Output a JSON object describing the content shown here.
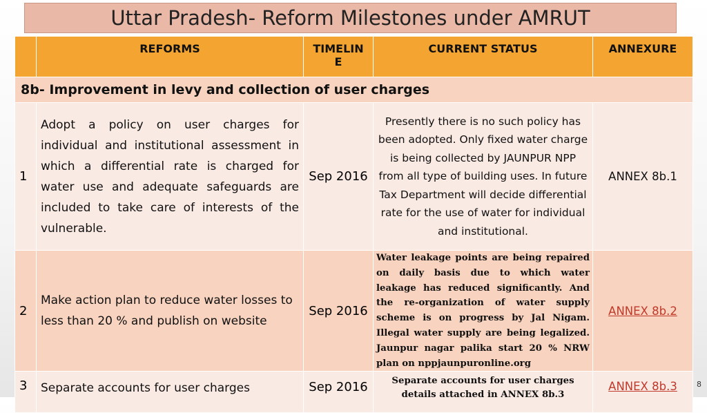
{
  "title": "Uttar Pradesh- Reform Milestones under AMRUT",
  "headers": {
    "reforms": "REFORMS",
    "timeline_line1": "TIMELIN",
    "timeline_line2": "E",
    "status": "CURRENT STATUS",
    "annexure": "ANNEXURE"
  },
  "section_title": "8b- Improvement in levy and collection of user charges",
  "rows": [
    {
      "number": "1",
      "reform": "Adopt a policy on user charges for individual and institutional assessment in which a differential rate is charged for water use and adequate safeguards are included to take care of interests of the vulnerable.",
      "timeline": "Sep 2016",
      "status": "Presently there is no such policy has been adopted. Only fixed water charge is being collected by JAUNPUR NPP from all type of building uses. In future Tax Department will decide differential rate for the use of water for individual and institutional.",
      "annexure": "ANNEX 8b.1"
    },
    {
      "number": "2",
      "reform": "Make action plan to reduce water losses to less than 20 % and publish on website",
      "timeline": "Sep 2016",
      "status": "Water leakage points are being repaired on daily basis due to which water leakage has reduced significantly. And the re-organization of water supply scheme is on progress by Jal Nigam. Illegal water supply are being legalized. Jaunpur nagar palika start 20 % NRW plan on nppjaunpuronline.org",
      "annexure": "ANNEX 8b.2"
    },
    {
      "number": "3",
      "reform": "Separate accounts for user charges",
      "timeline": "Sep 2016",
      "status": "Separate accounts for user charges details attached in ANNEX 8b.3",
      "annexure": "ANNEX 8b.3"
    }
  ],
  "page_number": "8"
}
